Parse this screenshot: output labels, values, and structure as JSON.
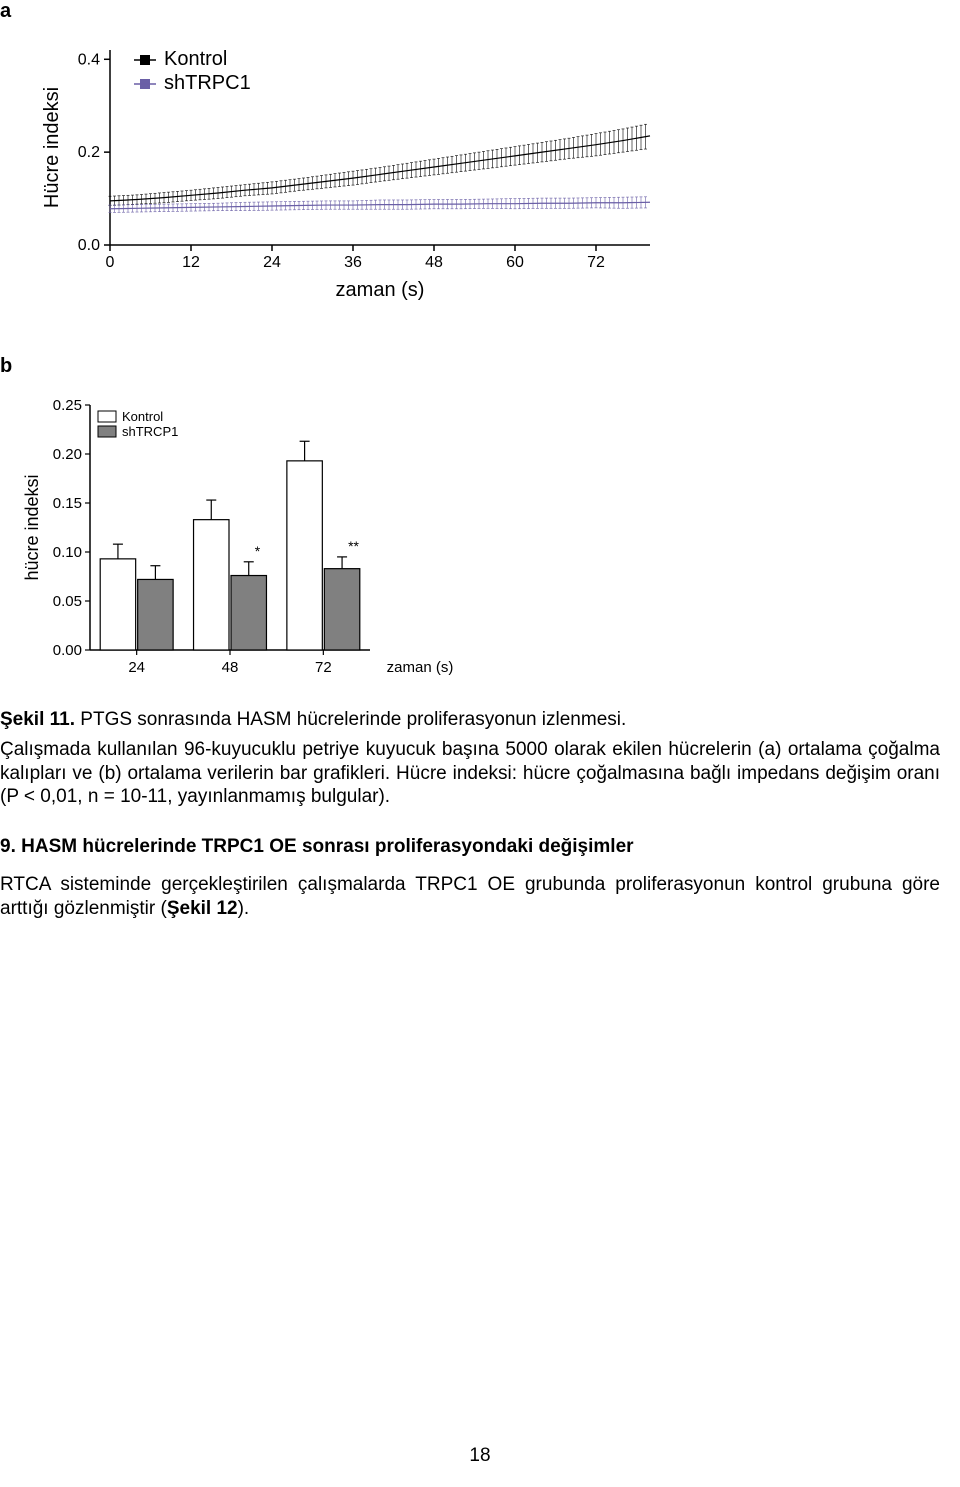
{
  "panels": {
    "a": "a",
    "b": "b"
  },
  "line_chart": {
    "type": "line",
    "ylabel": "Hücre indeksi",
    "xlabel": "zaman (s)",
    "yticks": [
      0.0,
      0.2,
      0.4
    ],
    "ytick_labels": [
      "0.0",
      "0.2",
      "0.4"
    ],
    "xticks": [
      0,
      12,
      24,
      36,
      48,
      60,
      72
    ],
    "xtick_labels": [
      "0",
      "12",
      "24",
      "36",
      "48",
      "60",
      "72"
    ],
    "xlim": [
      0,
      80
    ],
    "ylim": [
      0.0,
      0.42
    ],
    "legend": [
      {
        "label": "Kontrol",
        "color": "#000000",
        "marker": "square"
      },
      {
        "label": "shTRPC1",
        "color": "#6a5fa6",
        "marker": "square"
      }
    ],
    "series": [
      {
        "name": "Kontrol",
        "color": "#000000",
        "x": [
          0,
          4,
          8,
          12,
          16,
          20,
          24,
          28,
          32,
          36,
          40,
          44,
          48,
          52,
          56,
          60,
          64,
          68,
          72,
          76,
          80
        ],
        "y": [
          0.095,
          0.098,
          0.102,
          0.107,
          0.112,
          0.118,
          0.123,
          0.13,
          0.137,
          0.144,
          0.152,
          0.16,
          0.168,
          0.176,
          0.184,
          0.192,
          0.2,
          0.208,
          0.216,
          0.225,
          0.235
        ],
        "err": [
          0.01,
          0.01,
          0.011,
          0.011,
          0.012,
          0.012,
          0.013,
          0.013,
          0.014,
          0.015,
          0.015,
          0.016,
          0.017,
          0.018,
          0.019,
          0.02,
          0.021,
          0.022,
          0.024,
          0.025,
          0.027
        ]
      },
      {
        "name": "shTRPC1",
        "color": "#6a5fa6",
        "x": [
          0,
          4,
          8,
          12,
          16,
          20,
          24,
          28,
          32,
          36,
          40,
          44,
          48,
          52,
          56,
          60,
          64,
          68,
          72,
          76,
          80
        ],
        "y": [
          0.078,
          0.079,
          0.08,
          0.081,
          0.082,
          0.083,
          0.084,
          0.085,
          0.086,
          0.086,
          0.087,
          0.087,
          0.088,
          0.088,
          0.089,
          0.089,
          0.09,
          0.09,
          0.091,
          0.091,
          0.092
        ],
        "err": [
          0.008,
          0.008,
          0.008,
          0.008,
          0.008,
          0.009,
          0.009,
          0.009,
          0.009,
          0.009,
          0.01,
          0.01,
          0.01,
          0.01,
          0.01,
          0.011,
          0.011,
          0.011,
          0.011,
          0.012,
          0.012
        ]
      }
    ],
    "label_fontsize": 20,
    "tick_fontsize": 16,
    "legend_fontsize": 20,
    "line_width": 1.2,
    "background_color": "#ffffff",
    "axis_color": "#000000"
  },
  "bar_chart": {
    "type": "bar",
    "ylabel": "hücre indeksi",
    "xlabel": "zaman (s)",
    "yticks": [
      0.0,
      0.05,
      0.1,
      0.15,
      0.2,
      0.25
    ],
    "ytick_labels": [
      "0.00",
      "0.05",
      "0.10",
      "0.15",
      "0.20",
      "0.25"
    ],
    "xticks": [
      24,
      48,
      72
    ],
    "xtick_labels": [
      "24",
      "48",
      "72"
    ],
    "ylim": [
      0.0,
      0.25
    ],
    "legend": [
      {
        "label": "Kontrol",
        "fill": "#ffffff",
        "stroke": "#000000"
      },
      {
        "label": "shTRCP1",
        "fill": "#808080",
        "stroke": "#000000"
      }
    ],
    "groups": [
      {
        "x": "24",
        "kontrol": 0.093,
        "kontrol_err": 0.015,
        "sh": 0.072,
        "sh_err": 0.014,
        "sig": ""
      },
      {
        "x": "48",
        "kontrol": 0.133,
        "kontrol_err": 0.02,
        "sh": 0.076,
        "sh_err": 0.014,
        "sig": "*"
      },
      {
        "x": "72",
        "kontrol": 0.193,
        "kontrol_err": 0.02,
        "sh": 0.083,
        "sh_err": 0.012,
        "sig": "**"
      }
    ],
    "label_fontsize": 18,
    "tick_fontsize": 15,
    "legend_fontsize": 13,
    "bar_width": 0.38,
    "background_color": "#ffffff",
    "axis_color": "#000000"
  },
  "caption": {
    "title": "Şekil 11.",
    "title_rest": " PTGS sonrasında HASM hücrelerinde proliferasyonun izlenmesi.",
    "body": "Çalışmada kullanılan 96-kuyucuklu petriye kuyucuk başına 5000 olarak ekilen hücrelerin (a) ortalama çoğalma kalıpları ve (b) ortalama verilerin bar grafikleri. Hücre indeksi: hücre çoğalmasına bağlı impedans değişim oranı (P < 0,01, n = 10-11, yayınlanmamış bulgular)."
  },
  "section": {
    "number": "9.",
    "title": "HASM hücrelerinde TRPC1 OE sonrası proliferasyondaki değişimler",
    "body_before": "RTCA sisteminde gerçekleştirilen çalışmalarda TRPC1 OE grubunda proliferasyonun kontrol grubuna göre arttığı gözlenmiştir (",
    "ref": "Şekil 12",
    "body_after": ")."
  },
  "page_number": "18"
}
